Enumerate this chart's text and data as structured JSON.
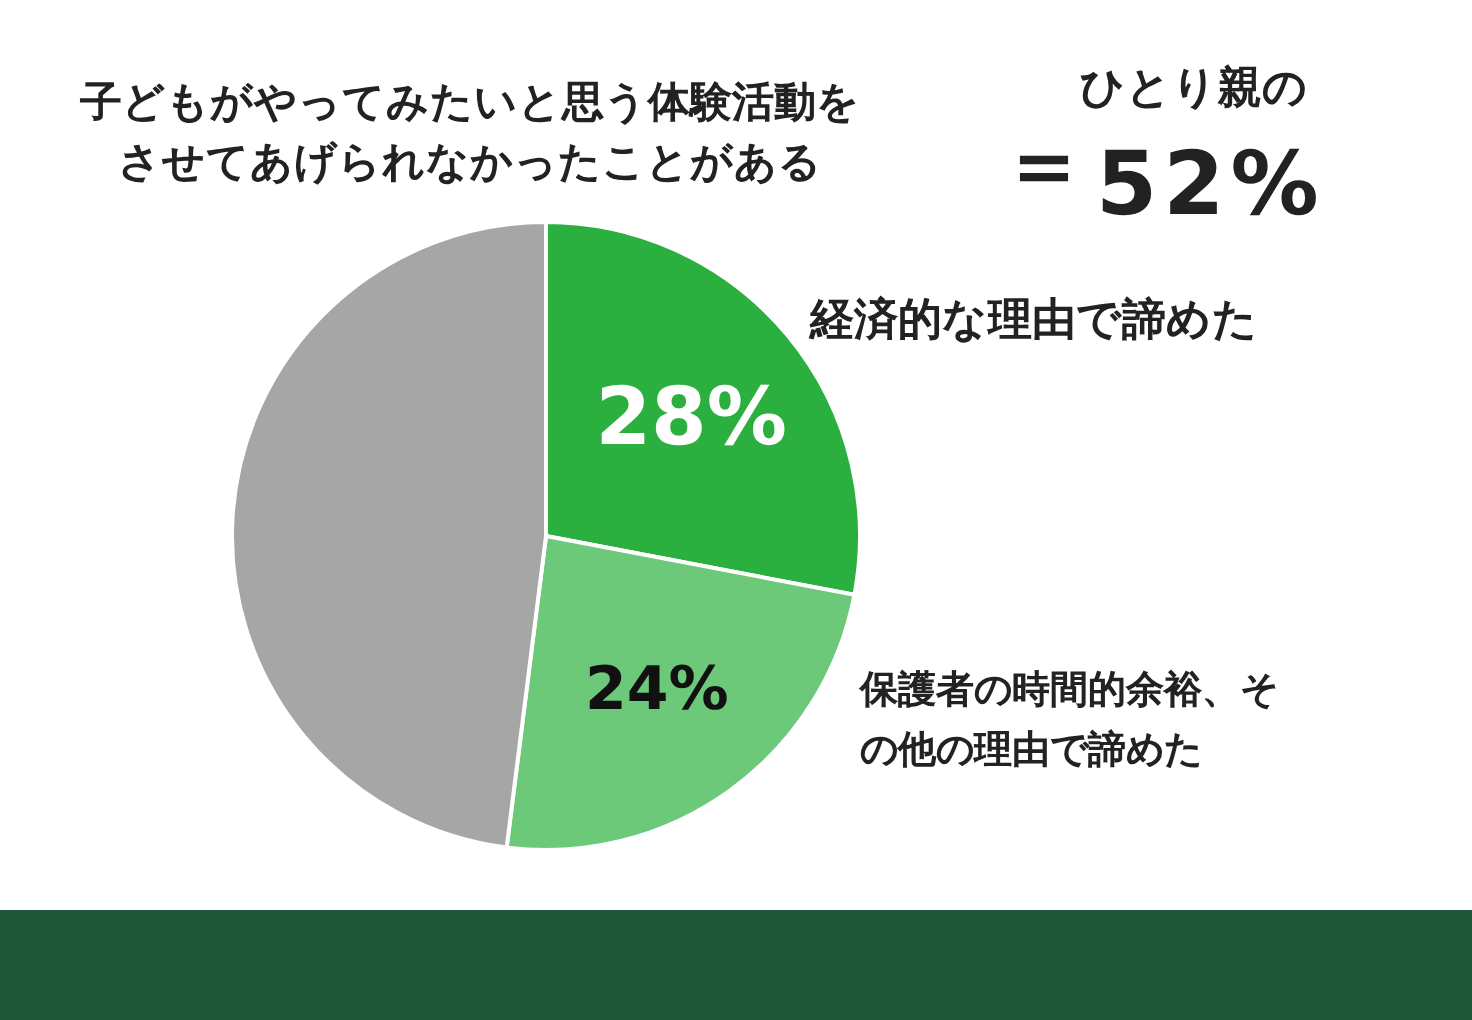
{
  "chart_data": {
    "type": "pie",
    "title": "子どもがやってみたいと思う体験活動をさせてあげられなかったことがある",
    "annotations": [
      "＝",
      "ひとり親の",
      "52%"
    ],
    "categories": [
      "経済的な理由で諦めた",
      "保護者の時間的余裕、その他の理由で諦めた",
      null
    ],
    "values": [
      28,
      24,
      48
    ],
    "colors": [
      "#2bb03f",
      "#6dc97a",
      "#a6a6a6"
    ],
    "value_labels": [
      "28%",
      "24%",
      null
    ]
  }
}
